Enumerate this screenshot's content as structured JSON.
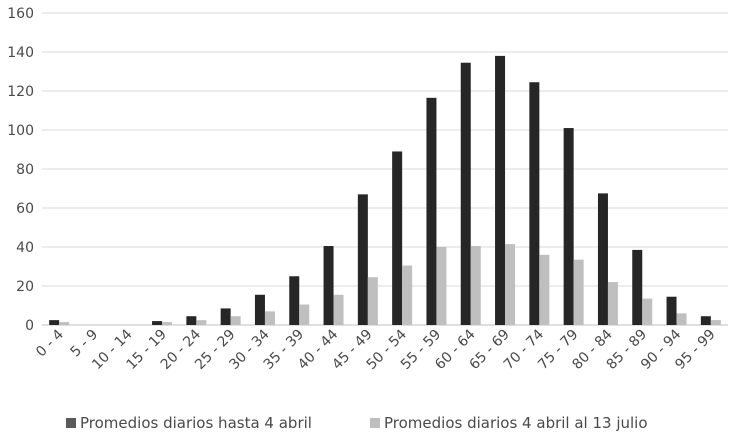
{
  "chart_data": {
    "type": "bar",
    "title": "",
    "xlabel": "",
    "ylabel": "",
    "ylim": [
      0,
      160
    ],
    "yticks": [
      0,
      20,
      40,
      60,
      80,
      100,
      120,
      140,
      160
    ],
    "grid": "horizontal",
    "legend_position": "bottom",
    "categories": [
      "0 - 4",
      "5 - 9",
      "10 - 14",
      "15 - 19",
      "20 - 24",
      "25 - 29",
      "30 - 34",
      "35 - 39",
      "40 - 44",
      "45 - 49",
      "50 - 54",
      "55 - 59",
      "60 - 64",
      "65 - 69",
      "70 - 74",
      "75 - 79",
      "80 - 84",
      "85 - 89",
      "90 - 94",
      "95 - 99"
    ],
    "series": [
      {
        "name": "Promedios diarios hasta 4 abril",
        "color": "#262626",
        "values": [
          2.5,
          0,
          0,
          2,
          4.5,
          8.5,
          15.5,
          25,
          40.5,
          67,
          89,
          116.5,
          134.5,
          138,
          124.5,
          101,
          67.5,
          38.5,
          14.5,
          4.5
        ]
      },
      {
        "name": "Promedios diarios 4 abril al 13 julio",
        "color": "#bfbfbf",
        "values": [
          1.5,
          0,
          0,
          1.5,
          2.5,
          4.5,
          7,
          10.5,
          15.5,
          24.5,
          30.5,
          40,
          40.5,
          41.5,
          36,
          33.5,
          22,
          13.5,
          6,
          2.5
        ]
      }
    ]
  }
}
